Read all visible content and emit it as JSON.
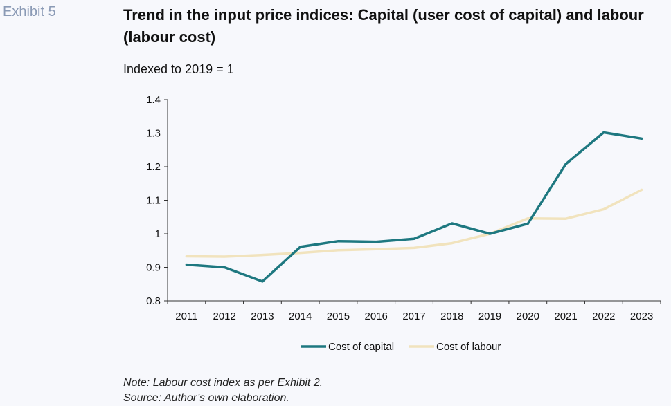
{
  "header": {
    "exhibit": "Exhibit 5",
    "title": "Trend in the input price indices: Capital (user cost of capital) and labour (labour cost)",
    "subtitle": "Indexed to 2019 = 1"
  },
  "chart_data": {
    "type": "line",
    "x": [
      "2011",
      "2012",
      "2013",
      "2014",
      "2015",
      "2016",
      "2017",
      "2018",
      "2019",
      "2020",
      "2021",
      "2022",
      "2023"
    ],
    "series": [
      {
        "name": "Cost of capital",
        "color": "#1e7880",
        "values": [
          0.908,
          0.9,
          0.858,
          0.961,
          0.978,
          0.976,
          0.985,
          1.031,
          1.0,
          1.03,
          1.208,
          1.302,
          1.284
        ]
      },
      {
        "name": "Cost of labour",
        "color": "#f1e3bd",
        "values": [
          0.933,
          0.932,
          0.937,
          0.943,
          0.951,
          0.954,
          0.958,
          0.972,
          1.0,
          1.046,
          1.045,
          1.073,
          1.131
        ]
      }
    ],
    "ylim": [
      0.8,
      1.4
    ],
    "yticks": [
      "0.8",
      "0.9",
      "1",
      "1.1",
      "1.2",
      "1.3",
      "1.4"
    ],
    "legend": "bottom",
    "grid": false
  },
  "footer": {
    "note": "Note: Labour cost index as per Exhibit 2.",
    "source": "Source: Author’s own elaboration."
  }
}
